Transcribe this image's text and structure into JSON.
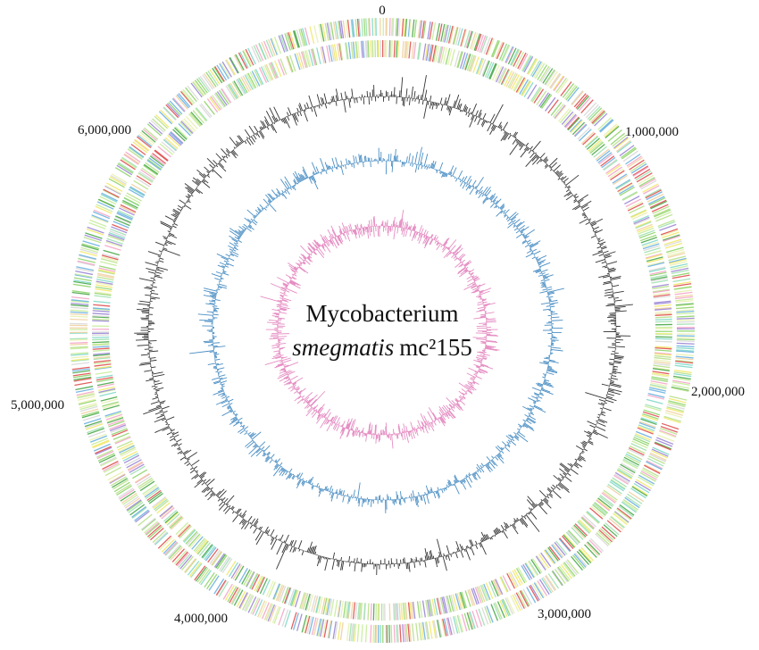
{
  "figure": {
    "organism_italic": "Mycobacterium",
    "organism_line2_italic": "smegmatis",
    "strain": "mc²155"
  },
  "position_labels": [
    "0",
    "1,000,000",
    "2,000,000",
    "3,000,000",
    "4,000,000",
    "5,000,000",
    "6,000,000"
  ],
  "tracks": [
    {
      "name": "cds-forward-ring",
      "kind": "colored-ticks"
    },
    {
      "name": "cds-reverse-ring",
      "kind": "colored-ticks"
    },
    {
      "name": "gc-content-ring",
      "kind": "bars",
      "color": "#111111"
    },
    {
      "name": "gc-skew-ring",
      "kind": "bars",
      "color": "#2a7ab8"
    },
    {
      "name": "inner-ring",
      "kind": "bars",
      "color": "#e07ab8"
    }
  ],
  "colors": {
    "gc_content": "#111111",
    "gc_skew": "#2a7ab8",
    "inner": "#e07ab8",
    "cog_palette": [
      "#b8e08a",
      "#8fd46a",
      "#f2e86a",
      "#7fd8c8",
      "#f4a6c8",
      "#9b86d6",
      "#e05050",
      "#4aa84a",
      "#c6ec9a",
      "#f0d0a0",
      "#6ab0e0",
      "#d8d8d8",
      "#e8f0b0",
      "#a0e0b0"
    ]
  },
  "genome_length": 7000000
}
